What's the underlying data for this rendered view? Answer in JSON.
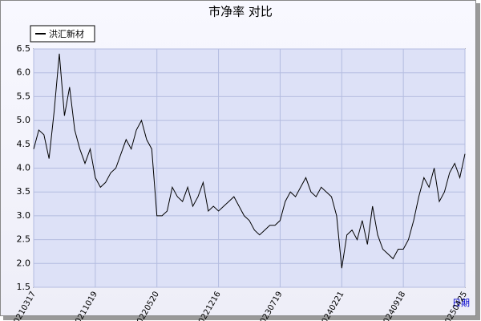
{
  "chart_data": {
    "type": "line",
    "title": "市净率  对比",
    "x_label": "日期",
    "categories": [
      "20210317",
      null,
      null,
      null,
      null,
      null,
      null,
      null,
      null,
      null,
      null,
      null,
      "20211019",
      null,
      null,
      null,
      null,
      null,
      null,
      null,
      null,
      null,
      null,
      null,
      "20220520",
      null,
      null,
      null,
      null,
      null,
      null,
      null,
      null,
      null,
      null,
      null,
      "20221216",
      null,
      null,
      null,
      null,
      null,
      null,
      null,
      null,
      null,
      null,
      null,
      "20230719",
      null,
      null,
      null,
      null,
      null,
      null,
      null,
      null,
      null,
      null,
      null,
      "20240221",
      null,
      null,
      null,
      null,
      null,
      null,
      null,
      null,
      null,
      null,
      null,
      "20240918",
      null,
      null,
      null,
      null,
      null,
      null,
      null,
      null,
      null,
      null,
      null,
      "20250425"
    ],
    "series": [
      {
        "name": "洪汇新材",
        "color": "#000000",
        "values": [
          4.4,
          4.8,
          4.7,
          4.2,
          5.2,
          6.4,
          5.1,
          5.7,
          4.8,
          4.4,
          4.1,
          4.4,
          3.8,
          3.6,
          3.7,
          3.9,
          4.0,
          4.3,
          4.6,
          4.4,
          4.8,
          5.0,
          4.6,
          4.4,
          3.0,
          3.0,
          3.1,
          3.6,
          3.4,
          3.3,
          3.6,
          3.2,
          3.4,
          3.7,
          3.1,
          3.2,
          3.1,
          3.2,
          3.3,
          3.4,
          3.2,
          3.0,
          2.9,
          2.7,
          2.6,
          2.7,
          2.8,
          2.8,
          2.9,
          3.3,
          3.5,
          3.4,
          3.6,
          3.8,
          3.5,
          3.4,
          3.6,
          3.5,
          3.4,
          3.0,
          1.9,
          2.6,
          2.7,
          2.5,
          2.9,
          2.4,
          3.2,
          2.6,
          2.3,
          2.2,
          2.1,
          2.3,
          2.3,
          2.5,
          2.9,
          3.4,
          3.8,
          3.6,
          4.0,
          3.3,
          3.5,
          3.9,
          4.1,
          3.8,
          4.3
        ]
      }
    ],
    "ylim": [
      1.5,
      6.5
    ],
    "yticks": [
      1.5,
      {
        "value": 2,
        "label": "2.0"
      },
      2.5,
      {
        "value": 3,
        "label": "3.0"
      },
      3.5,
      {
        "value": 4,
        "label": "4.0"
      },
      4.5,
      {
        "value": 5,
        "label": "5.0"
      },
      5.5,
      {
        "value": 6,
        "label": "6.0"
      },
      6.5
    ],
    "grid": true
  }
}
